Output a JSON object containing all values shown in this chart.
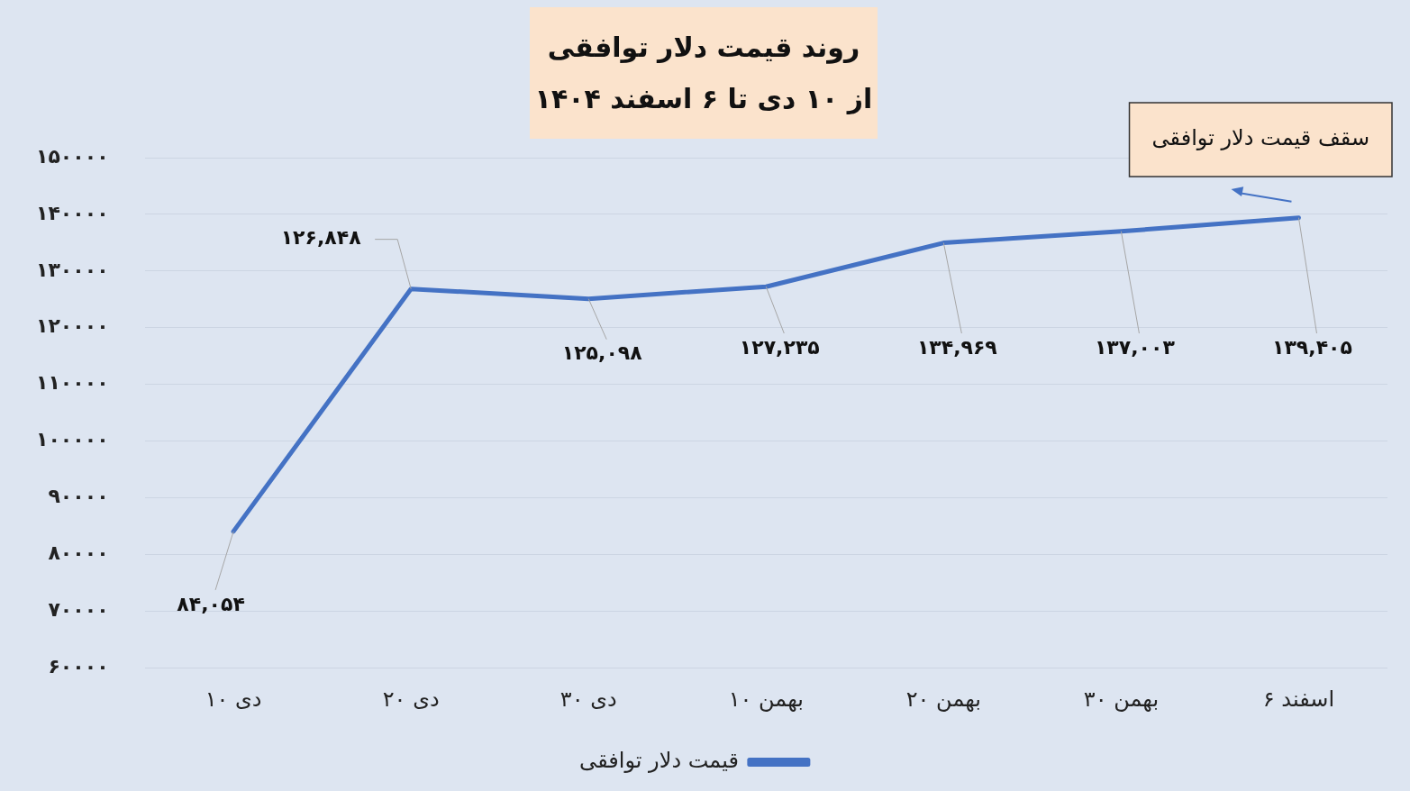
{
  "chart_data": {
    "type": "line",
    "title": "روند قیمت دلار توافقی",
    "subtitle": "از ۱۰ دی تا ۶ اسفند ۱۴۰۴",
    "categories": [
      "۱۰ دی",
      "۲۰ دی",
      "۳۰ دی",
      "۱۰ بهمن",
      "۲۰ بهمن",
      "۳۰ بهمن",
      "۶ اسفند"
    ],
    "series": [
      {
        "name": "قیمت دلار توافقی",
        "color": "#4472c4",
        "values": [
          84054,
          126848,
          125098,
          127235,
          134969,
          137003,
          139405
        ],
        "value_labels": [
          "۸۴,۰۵۴",
          "۱۲۶,۸۴۸",
          "۱۲۵,۰۹۸",
          "۱۲۷,۲۳۵",
          "۱۳۴,۹۶۹",
          "۱۳۷,۰۰۳",
          "۱۳۹,۴۰۵"
        ]
      }
    ],
    "ylim": [
      60000,
      150000
    ],
    "yticks": [
      {
        "value": 60000,
        "label": "۶۰۰۰۰"
      },
      {
        "value": 70000,
        "label": "۷۰۰۰۰"
      },
      {
        "value": 80000,
        "label": "۸۰۰۰۰"
      },
      {
        "value": 90000,
        "label": "۹۰۰۰۰"
      },
      {
        "value": 100000,
        "label": "۱۰۰۰۰۰"
      },
      {
        "value": 110000,
        "label": "۱۱۰۰۰۰"
      },
      {
        "value": 120000,
        "label": "۱۲۰۰۰۰"
      },
      {
        "value": 130000,
        "label": "۱۳۰۰۰۰"
      },
      {
        "value": 140000,
        "label": "۱۴۰۰۰۰"
      },
      {
        "value": 150000,
        "label": "۱۵۰۰۰۰"
      }
    ],
    "annotations": [
      "سقف قیمت دلار توافقی"
    ],
    "grid": "y",
    "legend": "bottom",
    "marker": "none",
    "line_style": "solid"
  }
}
